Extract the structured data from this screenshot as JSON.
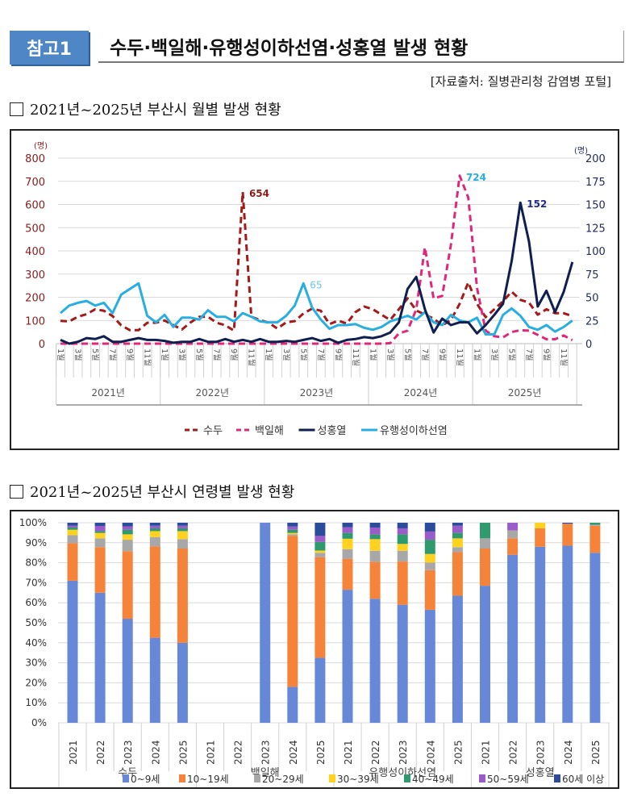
{
  "header": {
    "badge": "참고1",
    "title": "수두·백일해·유행성이하선염·성홍열 발생 현황"
  },
  "source": "[자료출처: 질병관리청 감염병 포털]",
  "section1": {
    "title": "2021년~2025년 부산시 월별 발생 현황"
  },
  "section2": {
    "title": "2021년~2025년 부산시 연령별 발생 현황"
  },
  "colors": {
    "chickenpox": "#a31a1a",
    "pertussis": "#e0287a",
    "scarlet": "#0f1f4f",
    "mumps": "#29aee0"
  },
  "chart_data": [
    {
      "type": "line",
      "left_unit": "(명)",
      "right_unit": "(명)",
      "left_ylim": [
        0,
        800
      ],
      "right_ylim": [
        0,
        200
      ],
      "left_ticks": [
        "0",
        "100",
        "200",
        "300",
        "400",
        "500",
        "600",
        "700",
        "800"
      ],
      "right_ticks": [
        "0",
        "25",
        "50",
        "75",
        "100",
        "125",
        "150",
        "175",
        "200"
      ],
      "grid": true,
      "legend_position": "bottom",
      "month_labels": [
        "1월",
        "3월",
        "5월",
        "7월",
        "9월",
        "11월"
      ],
      "years": [
        "2021년",
        "2022년",
        "2023년",
        "2024년",
        "2025년"
      ],
      "series": [
        {
          "name": "수두",
          "axis": "left",
          "style": "dashed",
          "color": "#a31a1a",
          "annotation": "654",
          "values": [
            98,
            96,
            116,
            127,
            148,
            142,
            119,
            79,
            58,
            58,
            90,
            90,
            100,
            80,
            61,
            92,
            116,
            116,
            90,
            79,
            56,
            654,
            116,
            102,
            90,
            65,
            92,
            97,
            130,
            151,
            142,
            84,
            99,
            87,
            136,
            160,
            148,
            125,
            102,
            148,
            195,
            143,
            125,
            108,
            79,
            102,
            172,
            264,
            172,
            114,
            148,
            183,
            224,
            189,
            177,
            125,
            148,
            131,
            131,
            119
          ]
        },
        {
          "name": "백일해",
          "axis": "left",
          "style": "dashed",
          "color": "#e0287a",
          "annotation": "724",
          "values": [
            0,
            0,
            0,
            0,
            0,
            0,
            0,
            0,
            0,
            0,
            0,
            0,
            0,
            0,
            0,
            0,
            0,
            0,
            0,
            0,
            0,
            0,
            0,
            0,
            0,
            0,
            0,
            0,
            0,
            0,
            0,
            0,
            0,
            0,
            0,
            0,
            0,
            0,
            2,
            44,
            56,
            148,
            415,
            195,
            206,
            427,
            724,
            630,
            241,
            56,
            32,
            27,
            50,
            58,
            56,
            38,
            19,
            19,
            35,
            15
          ]
        },
        {
          "name": "성홍열",
          "axis": "right",
          "style": "solid",
          "color": "#0f1f4f",
          "annotation": "152",
          "values": [
            4,
            0,
            2,
            6,
            5,
            8,
            2,
            2,
            4,
            6,
            4,
            4,
            3,
            1,
            2,
            2,
            5,
            2,
            2,
            5,
            2,
            4,
            2,
            5,
            2,
            2,
            3,
            2,
            4,
            6,
            3,
            5,
            1,
            4,
            5,
            7,
            6,
            8,
            12,
            23,
            59,
            72,
            37,
            12,
            27,
            20,
            23,
            23,
            11,
            20,
            31,
            43,
            89,
            152,
            110,
            40,
            57,
            34,
            56,
            88
          ]
        },
        {
          "name": "유행성이하선염",
          "axis": "right",
          "style": "solid",
          "color": "#29aee0",
          "annotation": "65",
          "values": [
            33,
            41,
            44,
            46,
            41,
            44,
            33,
            53,
            59,
            65,
            30,
            23,
            31,
            18,
            28,
            28,
            26,
            36,
            29,
            29,
            24,
            33,
            29,
            24,
            23,
            23,
            30,
            41,
            65,
            39,
            26,
            16,
            20,
            20,
            21,
            17,
            15,
            18,
            24,
            27,
            30,
            26,
            34,
            23,
            20,
            31,
            25,
            23,
            28,
            10,
            10,
            31,
            38,
            30,
            18,
            15,
            20,
            13,
            18,
            25
          ]
        }
      ]
    },
    {
      "type": "bar",
      "stacked": true,
      "ylim": [
        0,
        100
      ],
      "y_ticks": [
        "0%",
        "10%",
        "20%",
        "30%",
        "40%",
        "50%",
        "60%",
        "70%",
        "80%",
        "90%",
        "100%"
      ],
      "groups": [
        "수두",
        "백일해",
        "유행성이하선염",
        "성홍열"
      ],
      "years": [
        "2021",
        "2022",
        "2023",
        "2024",
        "2025"
      ],
      "legend_position": "bottom",
      "series": [
        {
          "name": "0~9세",
          "color": "#6688d6",
          "values": [
            71,
            65,
            52,
            42.5,
            40,
            0,
            0,
            100,
            18,
            32.5,
            66.5,
            62,
            59,
            56.5,
            63.5,
            68.5,
            84,
            88,
            88.5,
            85
          ]
        },
        {
          "name": "10~19세",
          "color": "#f5843a",
          "values": [
            18.8,
            22.8,
            33.8,
            45.7,
            47.1,
            0,
            0,
            0,
            75.5,
            50.3,
            15.5,
            18.4,
            21.6,
            19.8,
            21.8,
            18.6,
            8.2,
            9.2,
            11,
            13.5
          ]
        },
        {
          "name": "20~29세",
          "color": "#a8a8a8",
          "values": [
            4,
            4.4,
            5.7,
            4.6,
            4.7,
            0,
            0,
            0,
            0.7,
            2.2,
            4.8,
            5.6,
            5.4,
            3.8,
            2.5,
            5.1,
            4,
            0,
            0,
            0.5
          ]
        },
        {
          "name": "30~39세",
          "color": "#ffd21f",
          "values": [
            2.7,
            2.7,
            2.7,
            3,
            4,
            0,
            0,
            0,
            0.7,
            1.1,
            5.2,
            5.8,
            3.4,
            4.3,
            4.4,
            0,
            0,
            2.8,
            0,
            0
          ]
        },
        {
          "name": "40~49세",
          "color": "#2e9a6e",
          "values": [
            1.1,
            0.9,
            2.3,
            1.4,
            1.4,
            0,
            0,
            0,
            1.6,
            4.3,
            2.9,
            2.3,
            4.8,
            7.1,
            2.7,
            7.8,
            0,
            0,
            0,
            1
          ]
        },
        {
          "name": "50~59세",
          "color": "#9a5cc8",
          "values": [
            0.9,
            2.6,
            1.7,
            1.3,
            1.3,
            0,
            0,
            0,
            1.6,
            3,
            2.9,
            3.5,
            3,
            4.1,
            3.6,
            0,
            3.8,
            0,
            0,
            0
          ]
        },
        {
          "name": "60세 이상",
          "color": "#2b4b9b",
          "values": [
            1.5,
            1.6,
            1.8,
            1.5,
            1.5,
            0,
            0,
            0,
            1.9,
            6.6,
            2.2,
            2.4,
            2.8,
            4.4,
            1.5,
            0,
            0,
            0,
            0.5,
            0
          ]
        }
      ]
    }
  ]
}
